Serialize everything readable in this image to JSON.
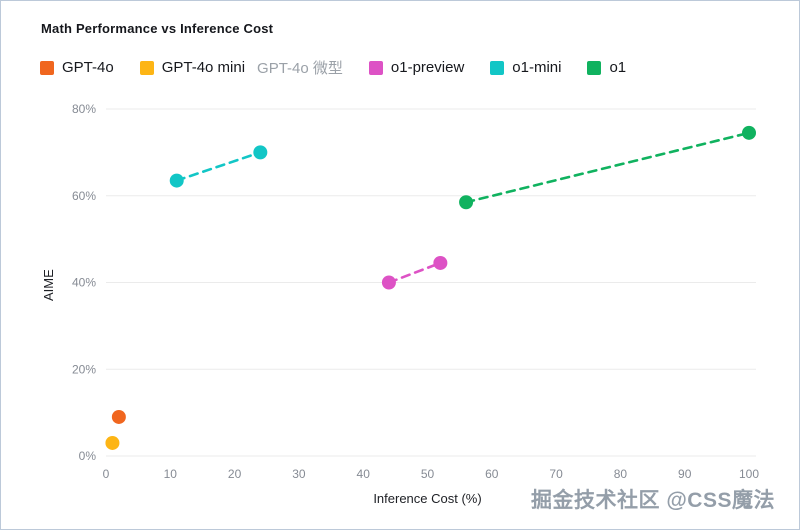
{
  "title": "Math Performance vs Inference Cost",
  "legend": [
    {
      "label": "GPT-4o",
      "color": "#f0661f"
    },
    {
      "label": "GPT-4o mini",
      "color": "#fdb515",
      "annotation": "GPT-4o 微型"
    },
    {
      "label": "o1-preview",
      "color": "#dd52c5"
    },
    {
      "label": "o1-mini",
      "color": "#12c6c6"
    },
    {
      "label": "o1",
      "color": "#10b25f"
    }
  ],
  "watermark": "掘金技术社区 @CSS魔法",
  "chart_data": {
    "type": "scatter",
    "title": "Math Performance vs Inference Cost",
    "xlabel": "Inference Cost (%)",
    "ylabel": "AIME",
    "xlim": [
      0,
      100
    ],
    "ylim": [
      0,
      80
    ],
    "x_ticks": [
      0,
      10,
      20,
      30,
      40,
      50,
      60,
      70,
      80,
      90,
      100
    ],
    "y_ticks": [
      0,
      20,
      40,
      60,
      80
    ],
    "y_tick_suffix": "%",
    "grid": "horizontal",
    "legend_position": "top-left",
    "series": [
      {
        "name": "GPT-4o",
        "color": "#f0661f",
        "dashed_line": false,
        "points": [
          {
            "x": 2,
            "y": 9
          }
        ]
      },
      {
        "name": "GPT-4o mini",
        "color": "#fdb515",
        "dashed_line": false,
        "points": [
          {
            "x": 1,
            "y": 3
          }
        ]
      },
      {
        "name": "o1-preview",
        "color": "#dd52c5",
        "dashed_line": true,
        "points": [
          {
            "x": 44,
            "y": 40
          },
          {
            "x": 52,
            "y": 44.5
          }
        ]
      },
      {
        "name": "o1-mini",
        "color": "#12c6c6",
        "dashed_line": true,
        "points": [
          {
            "x": 11,
            "y": 63.5
          },
          {
            "x": 24,
            "y": 70
          }
        ]
      },
      {
        "name": "o1",
        "color": "#10b25f",
        "dashed_line": true,
        "points": [
          {
            "x": 56,
            "y": 58.5
          },
          {
            "x": 100,
            "y": 74.5
          }
        ]
      }
    ]
  }
}
